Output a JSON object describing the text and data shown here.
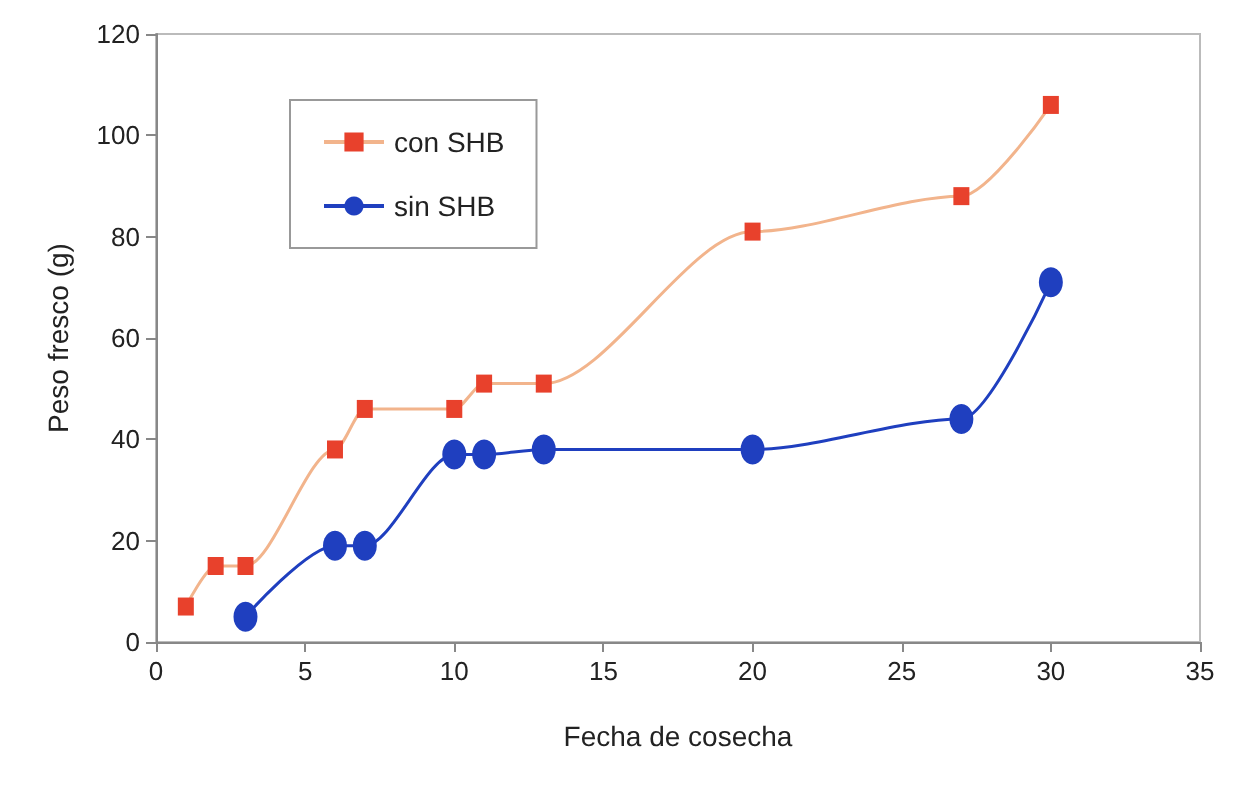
{
  "chart_data": {
    "type": "line",
    "xlabel": "Fecha de cosecha",
    "ylabel": "Peso fresco (g)",
    "xlim": [
      0,
      35
    ],
    "xticks": [
      0,
      5,
      10,
      15,
      20,
      25,
      30,
      35
    ],
    "ylim": [
      0,
      120
    ],
    "yticks": [
      0,
      20,
      40,
      60,
      80,
      100,
      120
    ],
    "grid": false,
    "legend": "top left",
    "series": [
      {
        "name": "con SHB",
        "color": "#e8412c",
        "marker": "square",
        "x": [
          1,
          2,
          3,
          6,
          7,
          10,
          11,
          13,
          20,
          27,
          30
        ],
        "values": [
          7,
          15,
          15,
          38,
          46,
          46,
          51,
          51,
          81,
          88,
          106
        ]
      },
      {
        "name": "sin SHB",
        "color": "#1f3fbf",
        "marker": "circle",
        "x": [
          3,
          6,
          7,
          10,
          11,
          13,
          20,
          27,
          30
        ],
        "values": [
          5,
          19,
          19,
          37,
          37,
          38,
          38,
          44,
          71
        ]
      }
    ]
  }
}
